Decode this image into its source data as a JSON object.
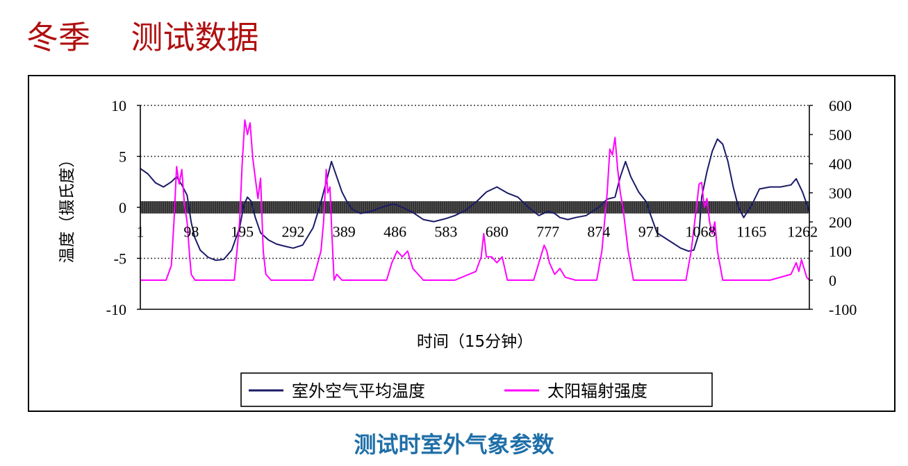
{
  "page": {
    "title": "冬季    测试数据",
    "caption": "测试时室外气象参数"
  },
  "chart_data": {
    "type": "line",
    "xlabel": "时间（15分钟）",
    "ylabel_left": "温度（摄氏度）",
    "ylim_left": [
      -10,
      10
    ],
    "ylim_right": [
      -100,
      600
    ],
    "yticks_left": [
      10,
      5,
      0,
      -5,
      -10
    ],
    "yticks_right": [
      600,
      500,
      400,
      300,
      200,
      100,
      0,
      -100
    ],
    "xlim": [
      1,
      1275
    ],
    "xticks": [
      "1",
      "98",
      "195",
      "292",
      "389",
      "486",
      "583",
      "680",
      "777",
      "874",
      "971",
      "1068",
      "1165",
      "1262"
    ],
    "xtick_values": [
      1,
      98,
      195,
      292,
      389,
      486,
      583,
      680,
      777,
      874,
      971,
      1068,
      1165,
      1262
    ],
    "grid": "horizontal-dotted",
    "legend": "bottom",
    "colors": {
      "temperature": "#1a1a66",
      "solar": "#ff00ff",
      "band": "#555555"
    },
    "series": [
      {
        "name": "室外空气平均温度",
        "axis": "left",
        "x": [
          1,
          15,
          30,
          45,
          60,
          70,
          80,
          90,
          98,
          105,
          115,
          130,
          145,
          160,
          175,
          190,
          198,
          205,
          212,
          220,
          230,
          245,
          260,
          275,
          292,
          310,
          330,
          345,
          355,
          365,
          375,
          385,
          395,
          405,
          420,
          440,
          460,
          480,
          486,
          500,
          520,
          540,
          560,
          583,
          600,
          620,
          640,
          660,
          680,
          700,
          720,
          740,
          760,
          777,
          790,
          800,
          815,
          830,
          850,
          874,
          890,
          905,
          915,
          925,
          935,
          950,
          965,
          971,
          985,
          1000,
          1015,
          1030,
          1045,
          1055,
          1065,
          1070,
          1080,
          1090,
          1100,
          1110,
          1120,
          1130,
          1140,
          1150,
          1165,
          1180,
          1200,
          1220,
          1240,
          1250,
          1262,
          1275
        ],
        "values": [
          3.8,
          3.3,
          2.4,
          2.0,
          2.5,
          3.0,
          2.2,
          1.2,
          -1.5,
          -3.0,
          -4.2,
          -4.9,
          -5.2,
          -5.1,
          -4.2,
          -2.0,
          0.2,
          1.0,
          0.6,
          -1.0,
          -2.5,
          -3.2,
          -3.6,
          -3.8,
          -4.0,
          -3.7,
          -2.0,
          0.5,
          2.5,
          4.5,
          3.0,
          1.5,
          0.5,
          -0.2,
          -0.6,
          -0.4,
          0.0,
          0.3,
          0.3,
          0.0,
          -0.5,
          -1.2,
          -1.4,
          -1.1,
          -0.8,
          -0.3,
          0.5,
          1.5,
          2.0,
          1.4,
          1.0,
          0.0,
          -0.8,
          -0.4,
          -0.6,
          -1.0,
          -1.2,
          -1.0,
          -0.8,
          0.0,
          0.8,
          1.0,
          3.0,
          4.5,
          3.0,
          1.5,
          0.5,
          -0.5,
          -2.5,
          -3.0,
          -3.5,
          -4.0,
          -4.3,
          -4.2,
          -2.5,
          1.0,
          3.5,
          5.5,
          6.7,
          6.2,
          4.5,
          2.0,
          0.0,
          -1.0,
          0.2,
          1.8,
          2.0,
          2.0,
          2.2,
          2.8,
          1.5,
          -0.4
        ]
      },
      {
        "name": "太阳辐射强度",
        "axis": "right",
        "x": [
          1,
          50,
          60,
          65,
          70,
          75,
          80,
          85,
          90,
          95,
          98,
          105,
          140,
          180,
          190,
          195,
          200,
          205,
          210,
          215,
          220,
          225,
          230,
          235,
          240,
          250,
          290,
          330,
          345,
          350,
          355,
          358,
          362,
          366,
          370,
          375,
          385,
          400,
          470,
          480,
          490,
          500,
          510,
          520,
          540,
          600,
          640,
          650,
          655,
          660,
          670,
          680,
          690,
          700,
          750,
          760,
          770,
          775,
          780,
          790,
          800,
          810,
          830,
          870,
          880,
          890,
          895,
          900,
          905,
          910,
          915,
          920,
          930,
          940,
          1000,
          1040,
          1050,
          1060,
          1065,
          1070,
          1075,
          1080,
          1085,
          1090,
          1095,
          1100,
          1110,
          1200,
          1240,
          1250,
          1255,
          1260,
          1265,
          1270,
          1275
        ],
        "values": [
          0,
          0,
          50,
          200,
          390,
          330,
          380,
          260,
          200,
          80,
          20,
          0,
          0,
          0,
          200,
          400,
          550,
          500,
          540,
          420,
          350,
          280,
          350,
          100,
          20,
          0,
          0,
          0,
          100,
          200,
          380,
          300,
          320,
          150,
          0,
          20,
          0,
          0,
          0,
          60,
          100,
          80,
          100,
          40,
          0,
          0,
          30,
          80,
          160,
          80,
          80,
          60,
          80,
          0,
          0,
          60,
          120,
          100,
          60,
          20,
          40,
          10,
          0,
          0,
          100,
          300,
          450,
          430,
          490,
          380,
          300,
          250,
          100,
          0,
          0,
          0,
          100,
          250,
          330,
          335,
          250,
          280,
          200,
          160,
          200,
          100,
          0,
          0,
          20,
          60,
          30,
          70,
          40,
          10,
          0
        ]
      }
    ]
  }
}
